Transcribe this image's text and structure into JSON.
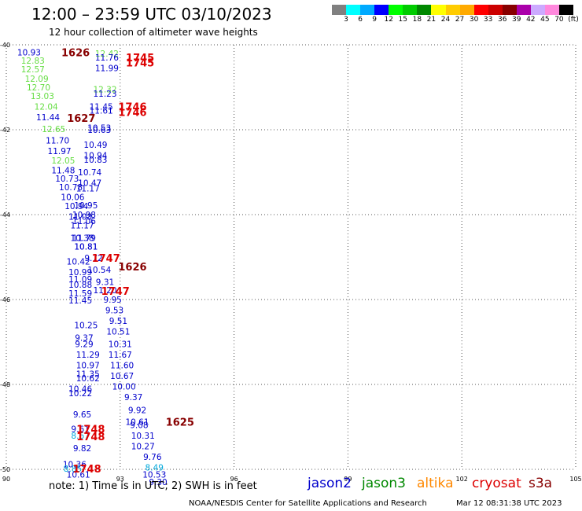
{
  "header": {
    "title": "12:00 – 23:59 UTC 03/10/2023",
    "subtitle": "12 hour collection of altimeter wave heights"
  },
  "color_scale": {
    "labels": [
      "3",
      "6",
      "9",
      "12",
      "15",
      "18",
      "21",
      "24",
      "27",
      "30",
      "33",
      "36",
      "39",
      "42",
      "45",
      "70",
      "(ft)"
    ],
    "colors": [
      "#808080",
      "#00ffff",
      "#00aaff",
      "#0000ff",
      "#00ff00",
      "#00cc00",
      "#008800",
      "#ffff00",
      "#ffcc00",
      "#ffaa00",
      "#ff0000",
      "#cc0000",
      "#880000",
      "#aa00aa",
      "#ccaaff",
      "#ff88dd",
      "#000000"
    ]
  },
  "footer": {
    "note": "note:  1) Time is in UTC;  2) SWH is in feet",
    "credit": "NOAA/NESDIS Center for Satellite Applications and Research",
    "timestamp": "Mar 12 08:31:38 UTC 2023"
  },
  "legend": [
    {
      "name": "jason2",
      "color": "#0000cc"
    },
    {
      "name": "jason3",
      "color": "#008800"
    },
    {
      "name": "altika",
      "color": "#ff8800"
    },
    {
      "name": "cryosat",
      "color": "#dd0000"
    },
    {
      "name": "s3a",
      "color": "#880000"
    }
  ],
  "map": {
    "x_ticks": [
      "90",
      "93",
      "96",
      "99",
      "102",
      "105"
    ],
    "x_tick_values": [
      90,
      93,
      96,
      99,
      102,
      105
    ],
    "y_ticks": [
      "-40",
      "-42",
      "-44",
      "-46",
      "-48",
      "-50"
    ],
    "y_tick_values": [
      -40,
      -42,
      -44,
      -46,
      -48,
      -50
    ],
    "xlim": [
      90,
      105
    ],
    "ylim": [
      -50,
      -40
    ],
    "gridlines": true
  },
  "observations": [
    {
      "lon": 90.6,
      "lat": -40.18,
      "swh": "10.93",
      "color": "#0000cc"
    },
    {
      "lon": 90.7,
      "lat": -40.37,
      "swh": "12.83",
      "color": "#66dd44"
    },
    {
      "lon": 90.7,
      "lat": -40.57,
      "swh": "12.57",
      "color": "#66dd44"
    },
    {
      "lon": 90.8,
      "lat": -40.8,
      "swh": "12.09",
      "color": "#66dd44"
    },
    {
      "lon": 90.85,
      "lat": -41.0,
      "swh": "12.70",
      "color": "#66dd44"
    },
    {
      "lon": 90.95,
      "lat": -41.2,
      "swh": "13.03",
      "color": "#66dd44"
    },
    {
      "lon": 91.05,
      "lat": -41.45,
      "swh": "12.04",
      "color": "#66dd44"
    },
    {
      "lon": 91.1,
      "lat": -41.7,
      "swh": "11.44",
      "color": "#0000cc"
    },
    {
      "lon": 91.25,
      "lat": -41.98,
      "swh": "12.65",
      "color": "#66dd44"
    },
    {
      "lon": 91.35,
      "lat": -42.25,
      "swh": "11.70",
      "color": "#0000cc"
    },
    {
      "lon": 91.4,
      "lat": -42.5,
      "swh": "11.97",
      "color": "#0000cc"
    },
    {
      "lon": 91.5,
      "lat": -42.72,
      "swh": "12.05",
      "color": "#66dd44"
    },
    {
      "lon": 91.5,
      "lat": -42.95,
      "swh": "11.48",
      "color": "#0000cc"
    },
    {
      "lon": 91.6,
      "lat": -43.15,
      "swh": "10.73",
      "color": "#0000cc"
    },
    {
      "lon": 91.7,
      "lat": -43.35,
      "swh": "10.78",
      "color": "#0000cc"
    },
    {
      "lon": 91.75,
      "lat": -43.58,
      "swh": "10.06",
      "color": "#0000cc"
    },
    {
      "lon": 91.85,
      "lat": -43.8,
      "swh": "10.94",
      "color": "#0000cc"
    },
    {
      "lon": 91.95,
      "lat": -44.05,
      "swh": "11.03",
      "color": "#0000cc"
    },
    {
      "lon": 92.0,
      "lat": -44.25,
      "swh": "11.17",
      "color": "#0000cc"
    },
    {
      "lon": 92.0,
      "lat": -44.55,
      "swh": "10.38",
      "color": "#0000cc"
    },
    {
      "lon": 92.1,
      "lat": -44.75,
      "swh": "10.81",
      "color": "#0000cc"
    },
    {
      "lon": 91.9,
      "lat": -45.1,
      "swh": "10.42",
      "color": "#0000cc"
    },
    {
      "lon": 91.95,
      "lat": -45.35,
      "swh": "10.99",
      "color": "#0000cc"
    },
    {
      "lon": 91.95,
      "lat": -45.52,
      "swh": "11.09",
      "color": "#0000cc"
    },
    {
      "lon": 91.95,
      "lat": -45.65,
      "swh": "10.88",
      "color": "#0000cc"
    },
    {
      "lon": 91.95,
      "lat": -45.85,
      "swh": "11.59",
      "color": "#0000cc"
    },
    {
      "lon": 91.95,
      "lat": -46.02,
      "swh": "11.45",
      "color": "#0000cc"
    },
    {
      "lon": 92.1,
      "lat": -46.6,
      "swh": "10.25",
      "color": "#0000cc"
    },
    {
      "lon": 92.05,
      "lat": -46.9,
      "swh": "9.37",
      "color": "#0000cc"
    },
    {
      "lon": 92.05,
      "lat": -47.05,
      "swh": "9.29",
      "color": "#0000cc"
    },
    {
      "lon": 92.15,
      "lat": -47.3,
      "swh": "11.29",
      "color": "#0000cc"
    },
    {
      "lon": 92.15,
      "lat": -47.55,
      "swh": "10.97",
      "color": "#0000cc"
    },
    {
      "lon": 92.15,
      "lat": -47.75,
      "swh": "11.35",
      "color": "#0000cc"
    },
    {
      "lon": 92.15,
      "lat": -47.85,
      "swh": "10.62",
      "color": "#0000cc"
    },
    {
      "lon": 91.95,
      "lat": -48.1,
      "swh": "10.46",
      "color": "#0000cc"
    },
    {
      "lon": 91.95,
      "lat": -48.2,
      "swh": "10.22",
      "color": "#0000cc"
    },
    {
      "lon": 92.0,
      "lat": -48.7,
      "swh": "9.65",
      "color": "#0000cc"
    },
    {
      "lon": 91.95,
      "lat": -49.05,
      "swh": "9.61",
      "color": "#0000cc"
    },
    {
      "lon": 91.95,
      "lat": -49.2,
      "swh": "8.67",
      "color": "#00aadd"
    },
    {
      "lon": 92.0,
      "lat": -49.5,
      "swh": "9.82",
      "color": "#0000cc"
    },
    {
      "lon": 91.8,
      "lat": -49.88,
      "swh": "10.36",
      "color": "#0000cc"
    },
    {
      "lon": 91.75,
      "lat": -49.98,
      "swh": "8.85",
      "color": "#00aadd"
    },
    {
      "lon": 91.9,
      "lat": -50.12,
      "swh": "10.61",
      "color": "#0000cc"
    },
    {
      "lon": 92.65,
      "lat": -40.2,
      "swh": "12.42",
      "color": "#66dd44"
    },
    {
      "lon": 92.65,
      "lat": -40.3,
      "swh": "11.76",
      "color": "#0000cc"
    },
    {
      "lon": 92.65,
      "lat": -40.55,
      "swh": "11.99",
      "color": "#0000cc"
    },
    {
      "lon": 92.6,
      "lat": -41.05,
      "swh": "12.32",
      "color": "#66dd44"
    },
    {
      "lon": 92.6,
      "lat": -41.15,
      "swh": "11.23",
      "color": "#0000cc"
    },
    {
      "lon": 92.5,
      "lat": -41.45,
      "swh": "11.45",
      "color": "#0000cc"
    },
    {
      "lon": 92.5,
      "lat": -41.55,
      "swh": "11.61",
      "color": "#0000cc"
    },
    {
      "lon": 92.45,
      "lat": -41.95,
      "swh": "10.53",
      "color": "#0000cc"
    },
    {
      "lon": 92.45,
      "lat": -42.0,
      "swh": "10.63",
      "color": "#0000cc"
    },
    {
      "lon": 92.35,
      "lat": -42.35,
      "swh": "10.49",
      "color": "#0000cc"
    },
    {
      "lon": 92.35,
      "lat": -42.6,
      "swh": "10.94",
      "color": "#0000cc"
    },
    {
      "lon": 92.35,
      "lat": -42.7,
      "swh": "10.83",
      "color": "#0000cc"
    },
    {
      "lon": 92.2,
      "lat": -43.0,
      "swh": "10.74",
      "color": "#0000cc"
    },
    {
      "lon": 92.2,
      "lat": -43.25,
      "swh": "10.47",
      "color": "#0000cc"
    },
    {
      "lon": 92.15,
      "lat": -43.38,
      "swh": "11.17",
      "color": "#0000cc"
    },
    {
      "lon": 92.1,
      "lat": -43.78,
      "swh": "10.95",
      "color": "#0000cc"
    },
    {
      "lon": 92.05,
      "lat": -44.0,
      "swh": "10.98",
      "color": "#0000cc"
    },
    {
      "lon": 92.05,
      "lat": -44.15,
      "swh": "11.06",
      "color": "#0000cc"
    },
    {
      "lon": 92.05,
      "lat": -44.55,
      "swh": "11.79",
      "color": "#0000cc"
    },
    {
      "lon": 92.1,
      "lat": -44.75,
      "swh": "10.81",
      "color": "#0000cc"
    },
    {
      "lon": 92.3,
      "lat": -45.02,
      "swh": "9.72",
      "color": "#0000cc"
    },
    {
      "lon": 92.45,
      "lat": -45.3,
      "swh": "10.54",
      "color": "#0000cc"
    },
    {
      "lon": 92.6,
      "lat": -45.58,
      "swh": "9.31",
      "color": "#0000cc"
    },
    {
      "lon": 92.6,
      "lat": -45.78,
      "swh": "11.20",
      "color": "#0000cc"
    },
    {
      "lon": 92.8,
      "lat": -46.0,
      "swh": "9.95",
      "color": "#0000cc"
    },
    {
      "lon": 92.85,
      "lat": -46.25,
      "swh": "9.53",
      "color": "#0000cc"
    },
    {
      "lon": 92.95,
      "lat": -46.5,
      "swh": "9.51",
      "color": "#0000cc"
    },
    {
      "lon": 92.95,
      "lat": -46.75,
      "swh": "10.51",
      "color": "#0000cc"
    },
    {
      "lon": 93.0,
      "lat": -47.05,
      "swh": "10.31",
      "color": "#0000cc"
    },
    {
      "lon": 93.0,
      "lat": -47.3,
      "swh": "11.67",
      "color": "#0000cc"
    },
    {
      "lon": 93.05,
      "lat": -47.55,
      "swh": "11.60",
      "color": "#0000cc"
    },
    {
      "lon": 93.05,
      "lat": -47.8,
      "swh": "10.67",
      "color": "#0000cc"
    },
    {
      "lon": 93.1,
      "lat": -48.05,
      "swh": "10.00",
      "color": "#0000cc"
    },
    {
      "lon": 93.35,
      "lat": -48.3,
      "swh": "9.37",
      "color": "#0000cc"
    },
    {
      "lon": 93.45,
      "lat": -48.6,
      "swh": "9.92",
      "color": "#0000cc"
    },
    {
      "lon": 93.45,
      "lat": -48.88,
      "swh": "10.61",
      "color": "#0000cc"
    },
    {
      "lon": 93.5,
      "lat": -48.95,
      "swh": "9.08",
      "color": "#0000cc"
    },
    {
      "lon": 93.6,
      "lat": -49.2,
      "swh": "10.31",
      "color": "#0000cc"
    },
    {
      "lon": 93.6,
      "lat": -49.45,
      "swh": "10.27",
      "color": "#0000cc"
    },
    {
      "lon": 93.85,
      "lat": -49.7,
      "swh": "9.76",
      "color": "#0000cc"
    },
    {
      "lon": 93.9,
      "lat": -49.95,
      "swh": "8.49",
      "color": "#00aadd"
    },
    {
      "lon": 93.9,
      "lat": -50.12,
      "swh": "10.53",
      "color": "#0000cc"
    },
    {
      "lon": 94.0,
      "lat": -50.3,
      "swh": "9.30",
      "color": "#0000cc"
    }
  ],
  "pass_times": [
    {
      "lon": 91.45,
      "lat": -40.18,
      "time": "1626",
      "color": "#880000"
    },
    {
      "lon": 93.15,
      "lat": -40.3,
      "time": "1745",
      "color": "#dd0000"
    },
    {
      "lon": 93.15,
      "lat": -40.42,
      "time": "1745",
      "color": "#dd0000"
    },
    {
      "lon": 92.95,
      "lat": -41.45,
      "time": "1746",
      "color": "#dd0000"
    },
    {
      "lon": 92.95,
      "lat": -41.58,
      "time": "1746",
      "color": "#dd0000"
    },
    {
      "lon": 91.6,
      "lat": -41.72,
      "time": "1627",
      "color": "#880000"
    },
    {
      "lon": 92.25,
      "lat": -45.02,
      "time": "1747",
      "color": "#dd0000"
    },
    {
      "lon": 92.95,
      "lat": -45.22,
      "time": "1626",
      "color": "#880000"
    },
    {
      "lon": 92.5,
      "lat": -45.8,
      "time": "1747",
      "color": "#dd0000"
    },
    {
      "lon": 94.2,
      "lat": -48.88,
      "time": "1625",
      "color": "#880000"
    },
    {
      "lon": 91.85,
      "lat": -49.05,
      "time": "1748",
      "color": "#dd0000"
    },
    {
      "lon": 91.85,
      "lat": -49.22,
      "time": "1748",
      "color": "#dd0000"
    },
    {
      "lon": 91.75,
      "lat": -49.98,
      "time": "1748",
      "color": "#dd0000"
    }
  ]
}
